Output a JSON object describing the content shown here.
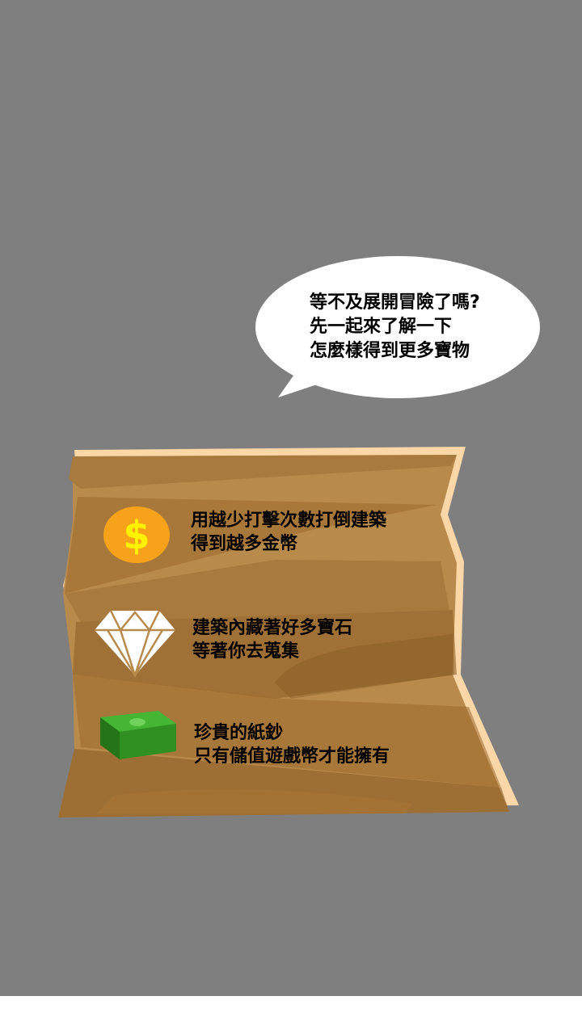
{
  "bubble": {
    "lines": [
      "等不及展開冒險了嗎?",
      "先一起來了解一下",
      "怎麼樣得到更多寶物"
    ]
  },
  "tips": [
    {
      "icon": "coin-icon",
      "lines": [
        "用越少打擊次數打倒建築",
        "得到越多金幣"
      ]
    },
    {
      "icon": "diamond-icon",
      "lines": [
        "建築內藏著好多寶石",
        "等著你去蒐集"
      ]
    },
    {
      "icon": "cash-icon",
      "lines": [
        "珍貴的紙鈔",
        "只有儲值遊戲幣才能擁有"
      ]
    }
  ],
  "colors": {
    "background": "#7f7f7f",
    "scroll_light": "#b88a4c",
    "scroll_dark": "#9a6a2e",
    "scroll_edge": "#fbd7a8",
    "coin": "#f7a21b",
    "coin_symbol": "#fff200",
    "cash": "#2e8b1e"
  }
}
